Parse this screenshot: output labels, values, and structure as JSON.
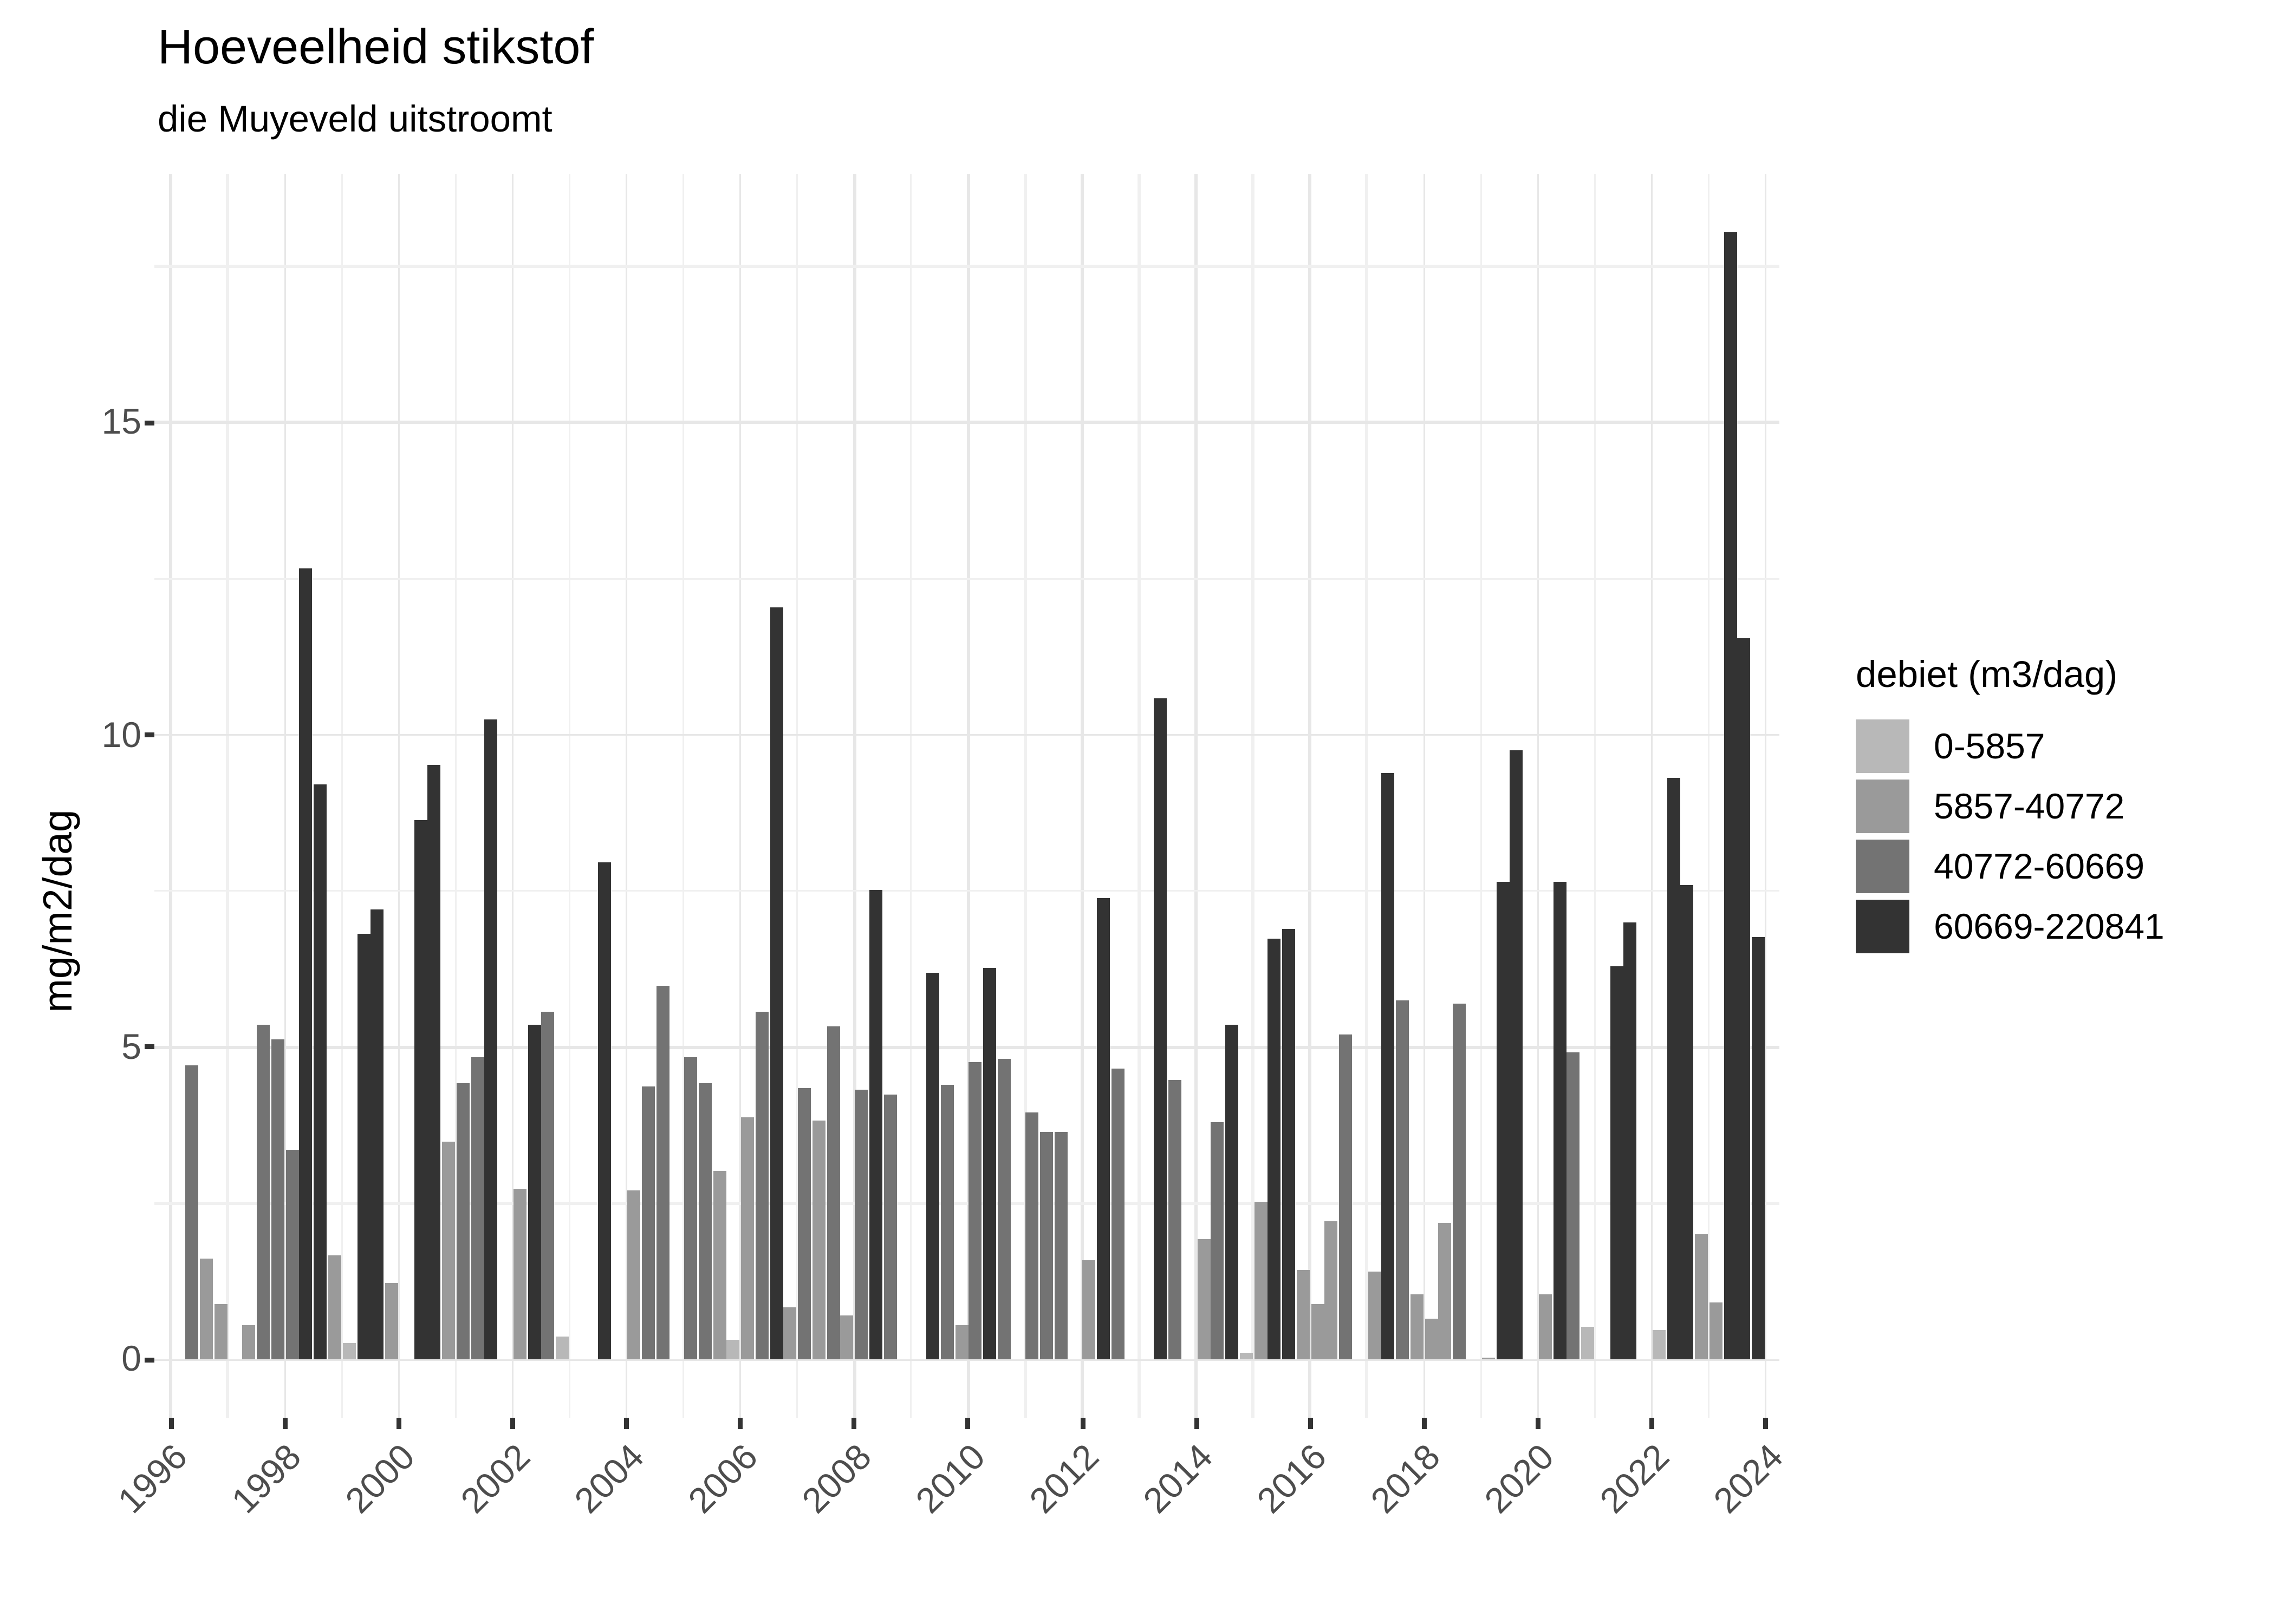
{
  "title": "Hoeveelheid stikstof",
  "subtitle": "die Muyeveld uitstroomt",
  "y_axis": {
    "title": "mg/m2/dag",
    "tick_labels": [
      "0",
      "5",
      "10",
      "15"
    ]
  },
  "x_axis": {
    "tick_labels": [
      "1996",
      "1998",
      "2000",
      "2002",
      "2004",
      "2006",
      "2008",
      "2010",
      "2012",
      "2014",
      "2016",
      "2018",
      "2020",
      "2022",
      "2024"
    ]
  },
  "legend": {
    "title": "debiet (m3/dag)",
    "items": [
      {
        "label": "0-5857",
        "color": "#b8b8b8"
      },
      {
        "label": "5857-40772",
        "color": "#9a9a9a"
      },
      {
        "label": "40772-60669",
        "color": "#737373"
      },
      {
        "label": "60669-220841",
        "color": "#333333"
      }
    ]
  },
  "colors": {
    "grid_major": "#e7e7e7",
    "grid_minor": "#f0f0f0",
    "axis_text": "#4d4d4d",
    "tick_mark": "#333333",
    "background": "#ffffff"
  },
  "chart_data": {
    "type": "bar",
    "title": "Hoeveelheid stikstof",
    "subtitle": "die Muyeveld uitstroomt",
    "xlabel": "",
    "ylabel": "mg/m2/dag",
    "ylim": [
      0,
      18.9
    ],
    "xlim_years": [
      1995.7,
      2024.3
    ],
    "y_major_ticks": [
      0,
      5,
      10,
      15
    ],
    "y_minor_gridlines": [
      2.5,
      7.5,
      12.5,
      17.5
    ],
    "x_major_ticks": [
      1996,
      1998,
      2000,
      2002,
      2004,
      2006,
      2008,
      2010,
      2012,
      2014,
      2016,
      2018,
      2020,
      2022,
      2024
    ],
    "grid": "on",
    "legend_position": "right",
    "legend_title": "debiet (m3/dag)",
    "series_note": "quarterly bars (Q1-Q4 per year); missing entries = no bar drawn; class = debiet (m3/dag) bin",
    "bars_columns": [
      "year",
      "quarter",
      "value_mg_m2_dag",
      "debiet_class"
    ],
    "bars": [
      [
        1996,
        2,
        4.7,
        "40772-60669"
      ],
      [
        1996,
        3,
        1.61,
        "5857-40772"
      ],
      [
        1996,
        4,
        0.88,
        "5857-40772"
      ],
      [
        1997,
        2,
        0.56,
        "5857-40772"
      ],
      [
        1997,
        3,
        5.36,
        "40772-60669"
      ],
      [
        1997,
        4,
        5.14,
        "40772-60669"
      ],
      [
        1998,
        1,
        3.35,
        "40772-60669"
      ],
      [
        1998,
        2,
        12.66,
        "60669-220841"
      ],
      [
        1998,
        3,
        9.22,
        "60669-220841"
      ],
      [
        1998,
        4,
        1.68,
        "5857-40772"
      ],
      [
        1999,
        1,
        0.27,
        "0-5857"
      ],
      [
        1999,
        2,
        6.83,
        "60669-220841"
      ],
      [
        1999,
        3,
        7.2,
        "60669-220841"
      ],
      [
        1999,
        4,
        1.23,
        "5857-40772"
      ],
      [
        2000,
        2,
        8.64,
        "60669-220841"
      ],
      [
        2000,
        3,
        9.51,
        "60669-220841"
      ],
      [
        2000,
        4,
        3.48,
        "5857-40772"
      ],
      [
        2001,
        1,
        4.42,
        "40772-60669"
      ],
      [
        2001,
        2,
        4.84,
        "40772-60669"
      ],
      [
        2001,
        3,
        10.25,
        "60669-220841"
      ],
      [
        2002,
        1,
        2.75,
        "5857-40772"
      ],
      [
        2002,
        2,
        5.36,
        "60669-220841"
      ],
      [
        2002,
        3,
        5.58,
        "40772-60669"
      ],
      [
        2002,
        4,
        0.38,
        "0-5857"
      ],
      [
        2003,
        3,
        7.97,
        "60669-220841"
      ],
      [
        2004,
        1,
        2.7,
        "5857-40772"
      ],
      [
        2004,
        2,
        4.38,
        "40772-60669"
      ],
      [
        2004,
        3,
        5.98,
        "40772-60669"
      ],
      [
        2005,
        1,
        4.84,
        "40772-60669"
      ],
      [
        2005,
        2,
        4.43,
        "40772-60669"
      ],
      [
        2005,
        3,
        3.02,
        "5857-40772"
      ],
      [
        2005,
        4,
        0.31,
        "0-5857"
      ],
      [
        2006,
        1,
        3.89,
        "5857-40772"
      ],
      [
        2006,
        2,
        5.58,
        "40772-60669"
      ],
      [
        2006,
        3,
        12.05,
        "60669-220841"
      ],
      [
        2006,
        4,
        0.83,
        "5857-40772"
      ],
      [
        2007,
        1,
        4.35,
        "40772-60669"
      ],
      [
        2007,
        2,
        3.83,
        "5857-40772"
      ],
      [
        2007,
        3,
        5.33,
        "40772-60669"
      ],
      [
        2007,
        4,
        0.71,
        "5857-40772"
      ],
      [
        2008,
        1,
        4.33,
        "40772-60669"
      ],
      [
        2008,
        2,
        7.53,
        "60669-220841"
      ],
      [
        2008,
        3,
        4.24,
        "40772-60669"
      ],
      [
        2009,
        2,
        6.2,
        "60669-220841"
      ],
      [
        2009,
        3,
        4.4,
        "40772-60669"
      ],
      [
        2009,
        4,
        0.55,
        "5857-40772"
      ],
      [
        2010,
        1,
        4.76,
        "40772-60669"
      ],
      [
        2010,
        2,
        6.28,
        "60669-220841"
      ],
      [
        2010,
        3,
        4.82,
        "40772-60669"
      ],
      [
        2011,
        1,
        3.97,
        "40772-60669"
      ],
      [
        2011,
        2,
        3.64,
        "40772-60669"
      ],
      [
        2011,
        3,
        3.64,
        "40772-60669"
      ],
      [
        2012,
        1,
        1.6,
        "5857-40772"
      ],
      [
        2012,
        2,
        7.39,
        "60669-220841"
      ],
      [
        2012,
        3,
        4.67,
        "40772-60669"
      ],
      [
        2013,
        2,
        10.6,
        "60669-220841"
      ],
      [
        2013,
        3,
        4.49,
        "40772-60669"
      ],
      [
        2014,
        1,
        1.92,
        "5857-40772"
      ],
      [
        2014,
        2,
        3.8,
        "40772-60669"
      ],
      [
        2014,
        3,
        5.36,
        "60669-220841"
      ],
      [
        2014,
        4,
        0.1,
        "0-5857"
      ],
      [
        2015,
        1,
        2.52,
        "5857-40772"
      ],
      [
        2015,
        2,
        6.74,
        "60669-220841"
      ],
      [
        2015,
        3,
        6.9,
        "60669-220841"
      ],
      [
        2015,
        4,
        1.45,
        "5857-40772"
      ],
      [
        2016,
        1,
        0.9,
        "5857-40772"
      ],
      [
        2016,
        2,
        2.22,
        "5857-40772"
      ],
      [
        2016,
        3,
        5.2,
        "40772-60669"
      ],
      [
        2017,
        1,
        1.4,
        "5857-40772"
      ],
      [
        2017,
        2,
        9.4,
        "60669-220841"
      ],
      [
        2017,
        3,
        5.75,
        "40772-60669"
      ],
      [
        2017,
        4,
        1.05,
        "5857-40772"
      ],
      [
        2018,
        1,
        0.65,
        "5857-40772"
      ],
      [
        2018,
        2,
        2.2,
        "5857-40772"
      ],
      [
        2018,
        3,
        5.7,
        "40772-60669"
      ],
      [
        2019,
        1,
        0.04,
        "5857-40772"
      ],
      [
        2019,
        2,
        7.64,
        "60669-220841"
      ],
      [
        2019,
        3,
        9.76,
        "60669-220841"
      ],
      [
        2020,
        1,
        1.05,
        "5857-40772"
      ],
      [
        2020,
        2,
        7.64,
        "60669-220841"
      ],
      [
        2020,
        3,
        4.92,
        "40772-60669"
      ],
      [
        2020,
        4,
        0.52,
        "0-5857"
      ],
      [
        2021,
        2,
        6.3,
        "60669-220841"
      ],
      [
        2021,
        3,
        7.0,
        "60669-220841"
      ],
      [
        2022,
        1,
        0.48,
        "0-5857"
      ],
      [
        2022,
        2,
        9.32,
        "60669-220841"
      ],
      [
        2022,
        3,
        7.59,
        "60669-220841"
      ],
      [
        2022,
        4,
        2.01,
        "5857-40772"
      ],
      [
        2023,
        1,
        0.93,
        "5857-40772"
      ],
      [
        2023,
        2,
        18.04,
        "60669-220841"
      ],
      [
        2023,
        3,
        11.55,
        "60669-220841"
      ],
      [
        2023,
        4,
        6.76,
        "60669-220841"
      ]
    ]
  }
}
